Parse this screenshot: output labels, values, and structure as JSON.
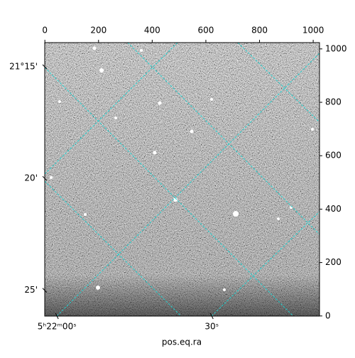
{
  "chart_data": {
    "type": "image",
    "xlabel": "pos.eq.ra",
    "xlim": [
      -0.5,
      1023.5
    ],
    "ylim": [
      -0.5,
      1023.5
    ],
    "xticks": [
      0,
      200,
      400,
      600,
      800,
      1000
    ],
    "yticks": [
      0,
      200,
      400,
      600,
      800,
      1000
    ],
    "ra_ticks": [
      {
        "value": 45,
        "label": "5ʰ22ᵐ00ˢ"
      },
      {
        "value": 622,
        "label": "30ˢ"
      }
    ],
    "dec_ticks": [
      {
        "value": 933,
        "label": "21°15'"
      },
      {
        "value": 515,
        "label": "20'"
      },
      {
        "value": 96,
        "label": "25'"
      }
    ],
    "grid": true
  }
}
